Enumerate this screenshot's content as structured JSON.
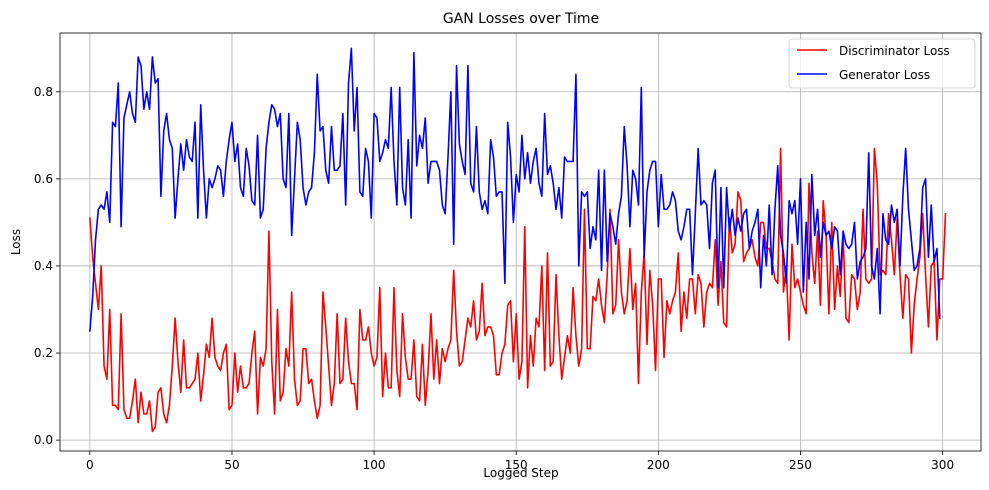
{
  "chart_data": {
    "type": "line",
    "title": "GAN Losses over Time",
    "xlabel": "Logged Step",
    "ylabel": "Loss",
    "xlim": [
      -10.5,
      313.5
    ],
    "ylim": [
      -0.025,
      0.935
    ],
    "xticks": [
      0,
      50,
      100,
      150,
      200,
      250,
      300
    ],
    "xtick_labels": [
      "0",
      "50",
      "100",
      "150",
      "200",
      "250",
      "300"
    ],
    "yticks": [
      0.0,
      0.2,
      0.4,
      0.6,
      0.8
    ],
    "ytick_labels": [
      "0.0",
      "0.2",
      "0.4",
      "0.6",
      "0.8"
    ],
    "grid": true,
    "legend_position": "top-right",
    "series": [
      {
        "name": "Discriminator Loss",
        "color": "#ff0000",
        "values": [
          0.51,
          0.42,
          0.36,
          0.3,
          0.4,
          0.17,
          0.14,
          0.3,
          0.08,
          0.08,
          0.07,
          0.29,
          0.07,
          0.05,
          0.05,
          0.09,
          0.14,
          0.04,
          0.11,
          0.06,
          0.06,
          0.09,
          0.02,
          0.03,
          0.11,
          0.12,
          0.06,
          0.04,
          0.08,
          0.17,
          0.28,
          0.18,
          0.11,
          0.23,
          0.12,
          0.12,
          0.13,
          0.14,
          0.2,
          0.09,
          0.15,
          0.22,
          0.19,
          0.28,
          0.19,
          0.17,
          0.16,
          0.2,
          0.22,
          0.07,
          0.08,
          0.2,
          0.11,
          0.17,
          0.12,
          0.12,
          0.13,
          0.2,
          0.25,
          0.06,
          0.19,
          0.17,
          0.21,
          0.48,
          0.18,
          0.06,
          0.3,
          0.09,
          0.11,
          0.21,
          0.17,
          0.34,
          0.14,
          0.08,
          0.09,
          0.21,
          0.21,
          0.13,
          0.14,
          0.09,
          0.05,
          0.08,
          0.34,
          0.26,
          0.17,
          0.08,
          0.13,
          0.29,
          0.13,
          0.14,
          0.28,
          0.18,
          0.13,
          0.13,
          0.07,
          0.3,
          0.23,
          0.23,
          0.26,
          0.2,
          0.17,
          0.19,
          0.35,
          0.1,
          0.2,
          0.12,
          0.12,
          0.35,
          0.16,
          0.1,
          0.29,
          0.19,
          0.14,
          0.14,
          0.23,
          0.1,
          0.09,
          0.22,
          0.08,
          0.16,
          0.29,
          0.14,
          0.23,
          0.13,
          0.21,
          0.18,
          0.21,
          0.23,
          0.39,
          0.25,
          0.17,
          0.18,
          0.23,
          0.28,
          0.26,
          0.32,
          0.23,
          0.25,
          0.36,
          0.24,
          0.26,
          0.26,
          0.24,
          0.15,
          0.15,
          0.2,
          0.22,
          0.31,
          0.32,
          0.18,
          0.29,
          0.14,
          0.18,
          0.49,
          0.12,
          0.24,
          0.17,
          0.28,
          0.26,
          0.4,
          0.16,
          0.43,
          0.17,
          0.18,
          0.38,
          0.24,
          0.14,
          0.19,
          0.24,
          0.2,
          0.35,
          0.24,
          0.17,
          0.21,
          0.53,
          0.21,
          0.21,
          0.33,
          0.32,
          0.37,
          0.31,
          0.27,
          0.38,
          0.53,
          0.29,
          0.31,
          0.46,
          0.34,
          0.29,
          0.32,
          0.44,
          0.3,
          0.36,
          0.13,
          0.34,
          0.43,
          0.22,
          0.39,
          0.31,
          0.16,
          0.37,
          0.37,
          0.19,
          0.32,
          0.29,
          0.32,
          0.34,
          0.43,
          0.25,
          0.34,
          0.28,
          0.37,
          0.37,
          0.29,
          0.38,
          0.36,
          0.26,
          0.34,
          0.36,
          0.35,
          0.46,
          0.31,
          0.41,
          0.27,
          0.26,
          0.51,
          0.43,
          0.45,
          0.57,
          0.55,
          0.41,
          0.43,
          0.44,
          0.46,
          0.42,
          0.4,
          0.5,
          0.5,
          0.44,
          0.44,
          0.41,
          0.37,
          0.36,
          0.67,
          0.34,
          0.4,
          0.23,
          0.45,
          0.35,
          0.37,
          0.34,
          0.31,
          0.29,
          0.59,
          0.43,
          0.36,
          0.48,
          0.31,
          0.55,
          0.47,
          0.29,
          0.5,
          0.3,
          0.4,
          0.33,
          0.47,
          0.28,
          0.27,
          0.38,
          0.37,
          0.3,
          0.34,
          0.53,
          0.37,
          0.36,
          0.37,
          0.67,
          0.59,
          0.38,
          0.39,
          0.38,
          0.52,
          0.46,
          0.38,
          0.51,
          0.38,
          0.28,
          0.38,
          0.37,
          0.2,
          0.31,
          0.37,
          0.42,
          0.52,
          0.38,
          0.26,
          0.4,
          0.41,
          0.23,
          0.37,
          0.37,
          0.52
        ]
      },
      {
        "name": "Generator Loss",
        "color": "#0000ff",
        "values": [
          0.25,
          0.33,
          0.46,
          0.53,
          0.54,
          0.53,
          0.57,
          0.5,
          0.73,
          0.72,
          0.82,
          0.49,
          0.74,
          0.77,
          0.8,
          0.75,
          0.73,
          0.88,
          0.86,
          0.76,
          0.8,
          0.76,
          0.88,
          0.82,
          0.83,
          0.56,
          0.71,
          0.75,
          0.69,
          0.67,
          0.51,
          0.6,
          0.68,
          0.62,
          0.69,
          0.65,
          0.64,
          0.73,
          0.51,
          0.77,
          0.62,
          0.51,
          0.6,
          0.58,
          0.6,
          0.63,
          0.62,
          0.56,
          0.64,
          0.69,
          0.73,
          0.64,
          0.68,
          0.58,
          0.56,
          0.67,
          0.63,
          0.55,
          0.54,
          0.7,
          0.51,
          0.53,
          0.67,
          0.73,
          0.77,
          0.76,
          0.72,
          0.75,
          0.6,
          0.58,
          0.75,
          0.47,
          0.6,
          0.73,
          0.69,
          0.58,
          0.54,
          0.57,
          0.58,
          0.66,
          0.84,
          0.71,
          0.72,
          0.62,
          0.59,
          0.72,
          0.62,
          0.62,
          0.63,
          0.75,
          0.54,
          0.82,
          0.9,
          0.71,
          0.81,
          0.57,
          0.56,
          0.67,
          0.64,
          0.51,
          0.75,
          0.74,
          0.64,
          0.66,
          0.69,
          0.67,
          0.81,
          0.64,
          0.54,
          0.81,
          0.58,
          0.54,
          0.69,
          0.51,
          0.89,
          0.63,
          0.7,
          0.67,
          0.74,
          0.59,
          0.64,
          0.64,
          0.64,
          0.62,
          0.54,
          0.52,
          0.65,
          0.8,
          0.45,
          0.86,
          0.68,
          0.64,
          0.61,
          0.86,
          0.59,
          0.57,
          0.72,
          0.57,
          0.53,
          0.55,
          0.52,
          0.69,
          0.65,
          0.56,
          0.57,
          0.57,
          0.36,
          0.73,
          0.65,
          0.5,
          0.61,
          0.57,
          0.7,
          0.6,
          0.66,
          0.59,
          0.64,
          0.67,
          0.59,
          0.56,
          0.75,
          0.61,
          0.63,
          0.59,
          0.53,
          0.58,
          0.51,
          0.65,
          0.64,
          0.64,
          0.64,
          0.84,
          0.4,
          0.57,
          0.56,
          0.57,
          0.44,
          0.49,
          0.46,
          0.62,
          0.39,
          0.62,
          0.41,
          0.52,
          0.49,
          0.45,
          0.52,
          0.56,
          0.72,
          0.63,
          0.49,
          0.62,
          0.6,
          0.54,
          0.81,
          0.42,
          0.57,
          0.62,
          0.64,
          0.64,
          0.49,
          0.61,
          0.53,
          0.53,
          0.54,
          0.57,
          0.55,
          0.48,
          0.46,
          0.49,
          0.53,
          0.53,
          0.38,
          0.52,
          0.67,
          0.54,
          0.55,
          0.54,
          0.44,
          0.59,
          0.62,
          0.35,
          0.58,
          0.35,
          0.58,
          0.48,
          0.53,
          0.47,
          0.51,
          0.48,
          0.52,
          0.53,
          0.44,
          0.48,
          0.5,
          0.53,
          0.35,
          0.47,
          0.4,
          0.54,
          0.38,
          0.53,
          0.63,
          0.47,
          0.43,
          0.36,
          0.55,
          0.52,
          0.55,
          0.45,
          0.6,
          0.34,
          0.5,
          0.37,
          0.61,
          0.47,
          0.53,
          0.42,
          0.5,
          0.47,
          0.48,
          0.44,
          0.49,
          0.48,
          0.38,
          0.48,
          0.45,
          0.44,
          0.45,
          0.5,
          0.37,
          0.41,
          0.42,
          0.44,
          0.66,
          0.4,
          0.37,
          0.44,
          0.29,
          0.52,
          0.46,
          0.45,
          0.54,
          0.5,
          0.53,
          0.4,
          0.56,
          0.67,
          0.53,
          0.46,
          0.39,
          0.4,
          0.44,
          0.58,
          0.6,
          0.42,
          0.54,
          0.41,
          0.44,
          0.28
        ]
      }
    ]
  }
}
